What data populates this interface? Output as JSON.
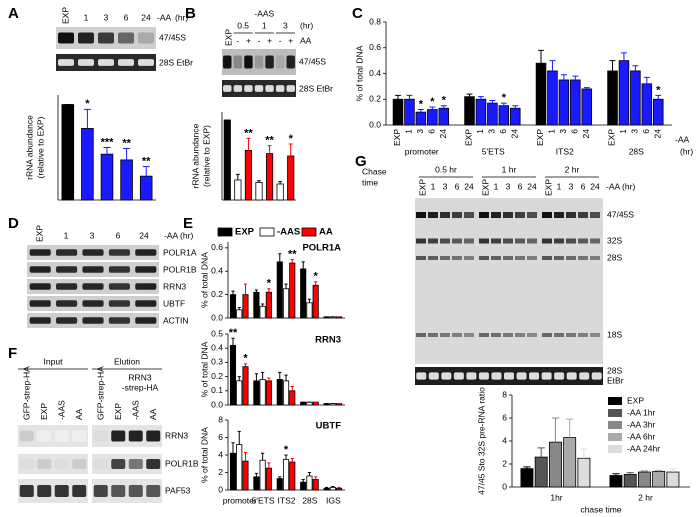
{
  "figure": {
    "panel_letters": [
      "A",
      "B",
      "C",
      "D",
      "E",
      "F",
      "G"
    ],
    "A": {
      "lanes": [
        "EXP",
        "1",
        "3",
        "6",
        "24"
      ],
      "condition": "-AA",
      "unit": "(hr)",
      "bands": [
        "47/45S",
        "28S EtBr"
      ]
    },
    "B": {
      "lane": "EXP",
      "condition": "-AAS",
      "times": [
        "0.5",
        "1",
        "3"
      ],
      "unit": "(hr)",
      "aa_label": "AA",
      "aa_signs": [
        "-",
        "+",
        "-",
        "+",
        "-",
        "+"
      ],
      "bands": [
        "47/45S",
        "28S EtBr"
      ]
    },
    "C": {
      "condition": "-AA",
      "unit": "(hr)"
    },
    "D": {
      "lanes": [
        "EXP",
        "1",
        "3",
        "6",
        "24"
      ],
      "condition": "-AA (hr)",
      "bands": [
        "POLR1A",
        "POLR1B",
        "RRN3",
        "UBTF",
        "ACTIN"
      ]
    },
    "F": {
      "groups": [
        "Input",
        "Elution"
      ],
      "lanes": [
        "GFP-strep-HA",
        "EXP",
        "-AAS",
        "AA"
      ],
      "bait": [
        "RRN3",
        "-strep-HA"
      ],
      "bands": [
        "RRN3",
        "POLR1B",
        "PAF53"
      ]
    },
    "G": {
      "chase_label": [
        "Chase",
        "time"
      ],
      "chase_times": [
        "0.5 hr",
        "1 hr",
        "2 hr"
      ],
      "lanes": [
        "EXP",
        "1",
        "3",
        "6",
        "24"
      ],
      "condition": "-AA (hr)",
      "bands": [
        "47/45S",
        "32S",
        "28S",
        "18S"
      ],
      "etbr": [
        "28S",
        "EtBr"
      ]
    }
  },
  "chart_data": [
    {
      "type": "bar",
      "values": [
        1,
        0.75,
        0.48,
        0.42,
        0.25
      ],
      "errors": [
        0,
        0.2,
        0.07,
        0.12,
        0.1
      ],
      "stars": [
        null,
        "*",
        "***",
        "**",
        "**"
      ],
      "colors": [
        "#000000",
        "#1a1aff",
        "#1a1aff",
        "#1a1aff",
        "#1a1aff"
      ],
      "ylabel": [
        "rRNA abundance",
        "(relative to EXP)"
      ],
      "ylim": [
        0,
        1.1
      ]
    },
    {
      "type": "bar",
      "values": [
        1,
        0.25,
        0.62,
        0.22,
        0.58,
        0.2,
        0.55
      ],
      "errors": [
        0,
        0.07,
        0.15,
        0.02,
        0.1,
        0.03,
        0.15
      ],
      "stars": [
        null,
        null,
        "**",
        null,
        "**",
        null,
        "*"
      ],
      "colors": [
        "#000000",
        "#ffffff",
        "#ff0000",
        "#ffffff",
        "#ff0000",
        "#ffffff",
        "#ff0000"
      ],
      "ylabel": [
        "rRNA abundance",
        "(relative to EXP)"
      ],
      "ylim": [
        0,
        1.1
      ]
    },
    {
      "type": "bar",
      "categories": [
        "promoter",
        "5'ETS",
        "ITS2",
        "28S"
      ],
      "ylabel": "% of total DNA",
      "ylim": [
        0,
        0.8
      ],
      "yticks": [
        {
          "value": 0,
          "label": "0.0"
        },
        0.2,
        0.4,
        0.6,
        0.8
      ],
      "legend": false,
      "series": [
        {
          "name": "EXP",
          "color": "#000000",
          "values": [
            0.2,
            0.22,
            0.48,
            0.42
          ],
          "errors": [
            0.03,
            0.02,
            0.1,
            0.08
          ]
        },
        {
          "name": "1",
          "color": "#1a1aff",
          "values": [
            0.2,
            0.2,
            0.42,
            0.5
          ],
          "errors": [
            0.03,
            0.02,
            0.08,
            0.06
          ]
        },
        {
          "name": "3",
          "color": "#1a1aff",
          "values": [
            0.1,
            0.17,
            0.35,
            0.42
          ],
          "errors": [
            0.02,
            0.02,
            0.04,
            0.04
          ],
          "stars": [
            "*",
            null,
            null,
            null
          ]
        },
        {
          "name": "6",
          "color": "#1a1aff",
          "values": [
            0.12,
            0.15,
            0.35,
            0.32
          ],
          "errors": [
            0.02,
            0.02,
            0.03,
            0.05
          ],
          "stars": [
            "*",
            "*",
            null,
            null
          ]
        },
        {
          "name": "24",
          "color": "#1a1aff",
          "values": [
            0.13,
            0.13,
            0.28,
            0.2
          ],
          "errors": [
            0.02,
            0.02,
            0.01,
            0.03
          ],
          "stars": [
            "*",
            null,
            null,
            "*"
          ]
        }
      ]
    },
    {
      "type": "bar",
      "title": "POLR1A",
      "ylabel": "% of total DNA",
      "ylim": [
        0,
        0.65
      ],
      "yticks": [
        {
          "value": 0,
          "label": "0.0"
        },
        0.2,
        0.4,
        0.6
      ],
      "legend": "top",
      "series": [
        {
          "name": "EXP",
          "color": "#000000",
          "values": [
            0.2,
            0.22,
            0.48,
            0.42,
            0.01
          ],
          "errors": [
            0.03,
            0.02,
            0.07,
            0.06,
            0
          ]
        },
        {
          "name": "-AAS",
          "color": "#ffffff",
          "values": [
            0.07,
            0.1,
            0.25,
            0.13,
            0.01
          ],
          "errors": [
            0.02,
            0.02,
            0.04,
            0.03,
            0
          ]
        },
        {
          "name": "AA",
          "color": "#ff0000",
          "values": [
            0.2,
            0.22,
            0.47,
            0.28,
            0.01
          ],
          "errors": [
            0.09,
            0.03,
            0.03,
            0.03,
            0
          ],
          "stars": [
            null,
            "*",
            "**",
            "*",
            null
          ]
        }
      ]
    },
    {
      "type": "bar",
      "title": "RRN3",
      "ylabel": "% of total DNA",
      "ylim": [
        0,
        0.5
      ],
      "yticks": [
        {
          "value": 0,
          "label": "0.0"
        },
        0.1,
        0.2,
        0.3,
        0.4,
        0.5
      ],
      "series": [
        {
          "color": "#000000",
          "values": [
            0.42,
            0.17,
            0.18,
            0.02,
            0.01
          ],
          "errors": [
            0.05,
            0.05,
            0.05,
            0,
            0
          ],
          "stars": [
            "**",
            null,
            null,
            null,
            null
          ]
        },
        {
          "color": "#ffffff",
          "values": [
            0.17,
            0.18,
            0.17,
            0.02,
            0.01
          ],
          "errors": [
            0.03,
            0.05,
            0.04,
            0,
            0
          ]
        },
        {
          "color": "#ff0000",
          "values": [
            0.27,
            0.17,
            0.1,
            0.02,
            0.01
          ],
          "errors": [
            0.02,
            0.02,
            0.03,
            0,
            0
          ],
          "stars": [
            "*",
            null,
            null,
            null,
            null
          ]
        }
      ]
    },
    {
      "type": "bar",
      "title": "UBTF",
      "categories": [
        "promoter",
        "5'ETS",
        "ITS2",
        "28S",
        "IGS"
      ],
      "ylabel": "% of total DNA",
      "ylim": [
        0,
        8
      ],
      "yticks": [
        0,
        2,
        4,
        6,
        8
      ],
      "series": [
        {
          "color": "#000000",
          "values": [
            4.2,
            1.5,
            1.3,
            0.9,
            0.2
          ],
          "errors": [
            1.2,
            0.4,
            0.2,
            0.3,
            0.1
          ]
        },
        {
          "color": "#ffffff",
          "values": [
            5.2,
            3.4,
            3.5,
            1.6,
            0.3
          ],
          "errors": [
            1.5,
            0.8,
            0.5,
            0.4,
            0.1
          ],
          "stars": [
            null,
            null,
            "*",
            null,
            null
          ]
        },
        {
          "color": "#ff0000",
          "values": [
            3.3,
            2.5,
            3.2,
            1.2,
            0.2
          ],
          "errors": [
            1,
            0.6,
            0.4,
            0.3,
            0.1
          ]
        }
      ]
    },
    {
      "type": "bar",
      "categories": [
        "1hr",
        "2 hr"
      ],
      "xlabel": "chase time",
      "ylabel": "47/45 Sto 32S pre-RNA ratio",
      "ylim": [
        0,
        8
      ],
      "yticks": [
        0,
        2,
        4,
        6,
        8
      ],
      "legend": "upper right",
      "series": [
        {
          "name": "EXP",
          "color": "#000000",
          "values": [
            1.6,
            1
          ],
          "errors": [
            0.15,
            0.15
          ]
        },
        {
          "name": "-AA 1hr",
          "color": "#555555",
          "values": [
            2.6,
            1.1
          ],
          "errors": [
            0.8,
            0.15
          ]
        },
        {
          "name": "-AA 3hr",
          "color": "#888888",
          "values": [
            3.9,
            1.3
          ],
          "errors": [
            2.1,
            0.1
          ]
        },
        {
          "name": "-AA 6hr",
          "color": "#aaaaaa",
          "values": [
            4.3,
            1.35
          ],
          "errors": [
            1.6,
            0.1
          ]
        },
        {
          "name": "-AA 24hr",
          "color": "#dddddd",
          "values": [
            2.5,
            1.3
          ],
          "errors": [
            0.8,
            0.25
          ]
        }
      ]
    }
  ]
}
